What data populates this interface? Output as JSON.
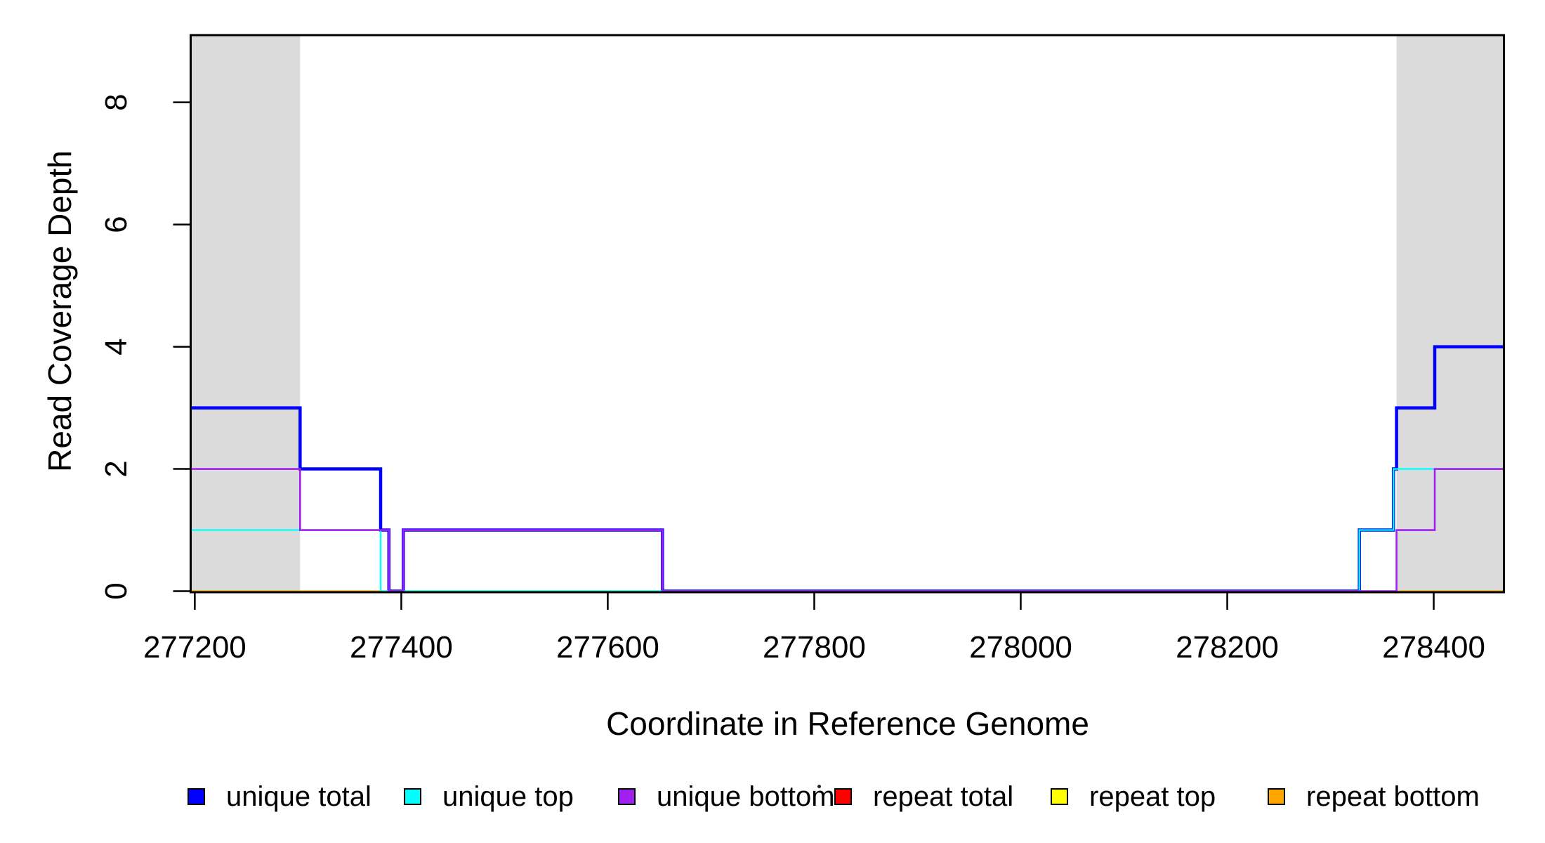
{
  "figure": {
    "background": "#FFFFFF",
    "axis_color": "#000000",
    "shaded_region_color": "#DBDBDB"
  },
  "chart_data": {
    "type": "line",
    "subtype": "step",
    "title": "",
    "xlabel": "Coordinate in Reference Genome",
    "ylabel": "Read Coverage Depth",
    "xlim": [
      277196,
      278468
    ],
    "ylim": [
      0,
      9.1
    ],
    "xticks": [
      277200,
      277400,
      277600,
      277800,
      278000,
      278200,
      278400
    ],
    "yticks": [
      0,
      2,
      4,
      6,
      8
    ],
    "grid": false,
    "box": true,
    "shaded_regions": [
      {
        "name": "shaded-region-left",
        "x0": 277196,
        "x1": 277302
      },
      {
        "name": "shaded-region-right",
        "x0": 278364,
        "x1": 278468
      }
    ],
    "series": [
      {
        "name": "repeat total",
        "color": "#FF0000",
        "width": 2.0,
        "x": [
          277196
        ],
        "y": [
          0
        ],
        "x_end": 278468
      },
      {
        "name": "repeat top",
        "color": "#FFFF00",
        "width": 2.0,
        "x": [
          277196
        ],
        "y": [
          0
        ],
        "x_end": 278468
      },
      {
        "name": "repeat bottom",
        "color": "#FFA500",
        "width": 2.3,
        "x": [
          277196
        ],
        "y": [
          0
        ],
        "x_end": 278468
      },
      {
        "name": "unique total",
        "color": "#0000FF",
        "width": 4.5,
        "x": [
          277196,
          277302,
          277380,
          277388,
          277402,
          277653,
          278328,
          278361,
          278364,
          278401
        ],
        "y": [
          3,
          2,
          1,
          0,
          1,
          0,
          1,
          2,
          3,
          4
        ],
        "x_end": 278468
      },
      {
        "name": "unique top",
        "color": "#00FFFF",
        "width": 2.3,
        "x": [
          277196,
          277380,
          278328,
          278361
        ],
        "y": [
          1,
          0,
          1,
          2
        ],
        "x_end": 278468
      },
      {
        "name": "unique bottom",
        "color": "#A020F0",
        "width": 2.6,
        "x": [
          277196,
          277302,
          277388,
          277402,
          277653,
          278364,
          278401
        ],
        "y": [
          2,
          1,
          0,
          1,
          0,
          1,
          2
        ],
        "x_end": 278468
      }
    ],
    "legend": {
      "position": "bottom",
      "items": [
        {
          "label": "unique total",
          "color": "#0000FF"
        },
        {
          "label": "unique top",
          "color": "#00FFFF"
        },
        {
          "label": "unique bottom",
          "color": "#A020F0"
        },
        {
          "label": "repeat total",
          "color": "#FF0000"
        },
        {
          "label": "repeat top",
          "color": "#FFFF00"
        },
        {
          "label": "repeat bottom",
          "color": "#FFA500"
        }
      ]
    }
  }
}
